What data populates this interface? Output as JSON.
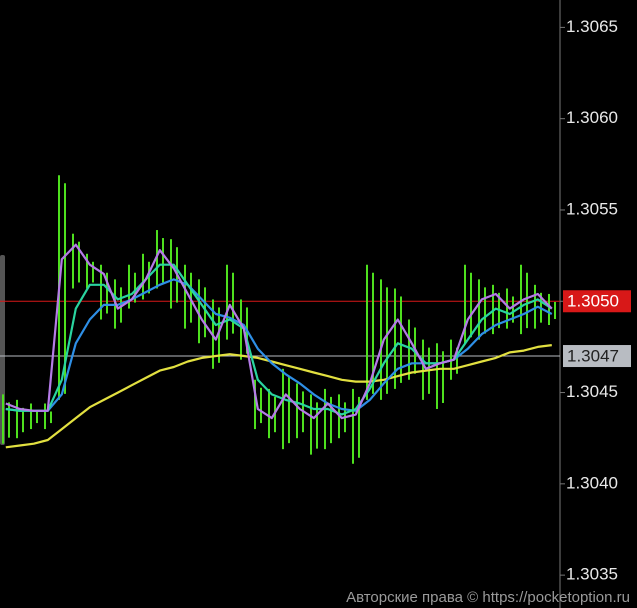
{
  "chart_data": {
    "type": "line",
    "watermark": "Авторские права © https://pocketoption.ru",
    "ylim": [
      1.30332,
      1.30665
    ],
    "yticks": [
      1.3065,
      {
        "value": 1.306,
        "label": "1.3060"
      },
      1.3055,
      {
        "value": 1.305,
        "label": "1.3050"
      },
      1.3045,
      {
        "value": 1.304,
        "label": "1.3040"
      },
      1.3035
    ],
    "price_lines": [
      {
        "value": 1.305,
        "label": "1.3050",
        "color": "#d81818"
      },
      {
        "value": 1.3047,
        "label": "1.3047",
        "color": "#b8bcc2"
      }
    ],
    "categories": [
      null,
      null,
      null,
      null,
      null,
      null,
      null,
      null,
      null,
      null,
      null,
      null,
      null,
      null,
      null,
      null,
      null,
      null,
      null,
      null,
      null,
      null,
      null,
      null,
      null,
      null,
      null,
      null,
      null,
      null,
      null,
      null,
      null,
      null,
      null,
      null,
      null,
      null,
      null,
      null
    ],
    "candles": {
      "color": "#4ee01e",
      "high": [
        1.30449,
        1.30446,
        1.30444,
        1.30444,
        1.30569,
        1.30537,
        1.30526,
        1.3052,
        1.30512,
        1.3052,
        1.30526,
        1.30539,
        1.30534,
        1.3052,
        1.30512,
        1.30501,
        1.3052,
        1.30501,
        1.30457,
        1.30452,
        1.30463,
        1.30455,
        1.30449,
        1.30452,
        1.30449,
        1.30452,
        1.3052,
        1.30512,
        1.30507,
        1.3049,
        1.30479,
        1.30477,
        1.30479,
        1.3052,
        1.30512,
        1.30509,
        1.30507,
        1.3052,
        1.30509,
        1.30504
      ],
      "low": [
        1.30422,
        1.30425,
        1.3043,
        1.3043,
        1.30446,
        1.30507,
        1.30507,
        1.3049,
        1.30485,
        1.30496,
        1.30501,
        1.30507,
        1.30496,
        1.30485,
        1.30477,
        1.30463,
        1.30479,
        1.30468,
        1.3043,
        1.30425,
        1.30419,
        1.30425,
        1.30416,
        1.30419,
        1.30425,
        1.30411,
        1.30446,
        1.30446,
        1.30452,
        1.30457,
        1.30446,
        1.30441,
        1.30457,
        1.30477,
        1.30479,
        1.30482,
        1.30485,
        1.30482,
        1.30485,
        1.30487
      ]
    },
    "series": [
      {
        "color": "#e2e040",
        "values": [
          1.3042,
          1.30421,
          1.30422,
          1.30424,
          1.3043,
          1.30436,
          1.30442,
          1.30446,
          1.3045,
          1.30454,
          1.30458,
          1.30462,
          1.30464,
          1.30467,
          1.30469,
          1.3047,
          1.30471,
          1.3047,
          1.30469,
          1.30467,
          1.30465,
          1.30463,
          1.30461,
          1.30459,
          1.30457,
          1.30456,
          1.30456,
          1.30457,
          1.30459,
          1.30461,
          1.30462,
          1.30463,
          1.30463,
          1.30465,
          1.30467,
          1.30469,
          1.30472,
          1.30473,
          1.30475,
          1.30476
        ]
      },
      {
        "color": "#2e8fe6",
        "values": [
          1.30441,
          1.3044,
          1.3044,
          1.3044,
          1.30449,
          1.30477,
          1.3049,
          1.30498,
          1.30498,
          1.30501,
          1.30505,
          1.30509,
          1.30512,
          1.30509,
          1.30501,
          1.30493,
          1.30491,
          1.30487,
          1.30474,
          1.30466,
          1.3046,
          1.30455,
          1.30449,
          1.30444,
          1.30441,
          1.3044,
          1.30446,
          1.30455,
          1.30463,
          1.30466,
          1.30466,
          1.30466,
          1.30468,
          1.30474,
          1.30482,
          1.30487,
          1.3049,
          1.30493,
          1.30497,
          1.30493
        ]
      },
      {
        "color": "#2ad4a0",
        "values": [
          1.30441,
          1.3044,
          1.3044,
          1.3044,
          1.30457,
          1.30496,
          1.30509,
          1.30509,
          1.30501,
          1.30504,
          1.30512,
          1.3052,
          1.3052,
          1.30509,
          1.30498,
          1.30487,
          1.3049,
          1.30485,
          1.30457,
          1.30449,
          1.30446,
          1.30444,
          1.30441,
          1.30441,
          1.30438,
          1.30441,
          1.30452,
          1.30466,
          1.30477,
          1.30474,
          1.30466,
          1.30466,
          1.30468,
          1.30479,
          1.3049,
          1.30496,
          1.30493,
          1.30498,
          1.30501,
          1.30496
        ]
      },
      {
        "color": "#b57be8",
        "values": [
          1.30444,
          1.30441,
          1.3044,
          1.3044,
          1.30523,
          1.30531,
          1.3052,
          1.30515,
          1.30496,
          1.30501,
          1.30512,
          1.30528,
          1.30518,
          1.30504,
          1.3049,
          1.30479,
          1.30498,
          1.30485,
          1.30441,
          1.30436,
          1.30449,
          1.30441,
          1.30436,
          1.30444,
          1.30436,
          1.30438,
          1.30455,
          1.30479,
          1.3049,
          1.30477,
          1.30463,
          1.30466,
          1.30468,
          1.3049,
          1.30501,
          1.30504,
          1.30496,
          1.30501,
          1.30504,
          1.30496
        ]
      }
    ]
  }
}
